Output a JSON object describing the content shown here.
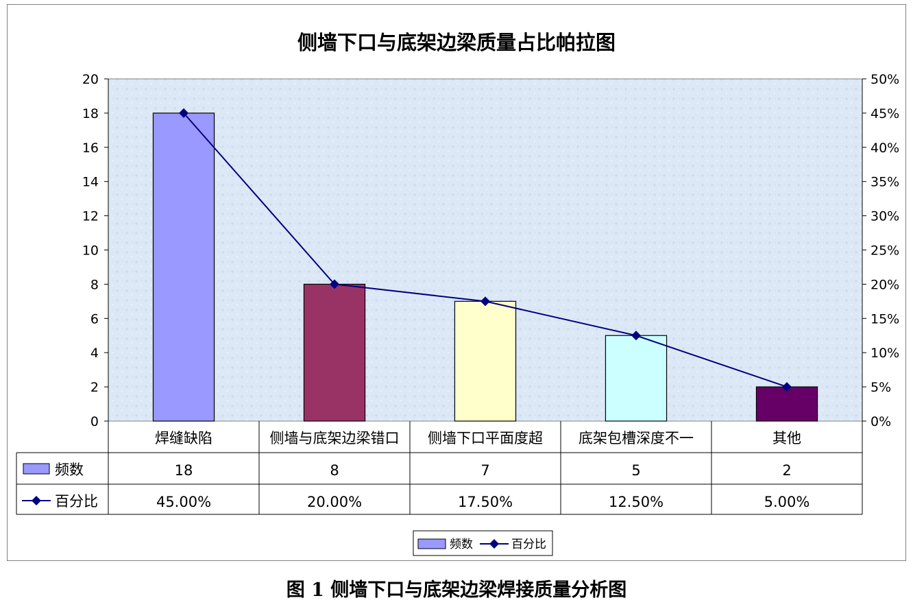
{
  "chart_data": {
    "type": "bar",
    "title": "侧墙下口与底架边梁质量占比帕拉图",
    "categories": [
      "焊缝缺陷",
      "侧墙与底架边梁错口",
      "侧墙下口平面度超",
      "底架包槽深度不一",
      "其他"
    ],
    "series": [
      {
        "name": "频数",
        "type": "bar",
        "axis": "left",
        "values": [
          18,
          8,
          7,
          5,
          2
        ],
        "labels": [
          "18",
          "8",
          "7",
          "5",
          "2"
        ],
        "colors": [
          "#9999FF",
          "#993366",
          "#FFFFCC",
          "#CCFFFF",
          "#660066"
        ]
      },
      {
        "name": "百分比",
        "type": "line",
        "axis": "right",
        "values": [
          45,
          20,
          17.5,
          12.5,
          5
        ],
        "labels": [
          "45.00%",
          "20.00%",
          "17.50%",
          "12.50%",
          "5.00%"
        ],
        "color": "#000080"
      }
    ],
    "yleft": {
      "min": 0,
      "max": 20,
      "step": 2,
      "ticks": [
        "0",
        "2",
        "4",
        "6",
        "8",
        "10",
        "12",
        "14",
        "16",
        "18",
        "20"
      ]
    },
    "yright": {
      "min": 0,
      "max": 50,
      "step": 5,
      "ticks": [
        "0%",
        "5%",
        "10%",
        "15%",
        "20%",
        "25%",
        "30%",
        "35%",
        "40%",
        "45%",
        "50%"
      ]
    },
    "legend": {
      "position": "bottom",
      "items": [
        "频数",
        "百分比"
      ]
    },
    "data_table": true,
    "plot_background": "#DCE8F6"
  },
  "caption": "图 1  侧墙下口与底架边梁焊接质量分析图"
}
